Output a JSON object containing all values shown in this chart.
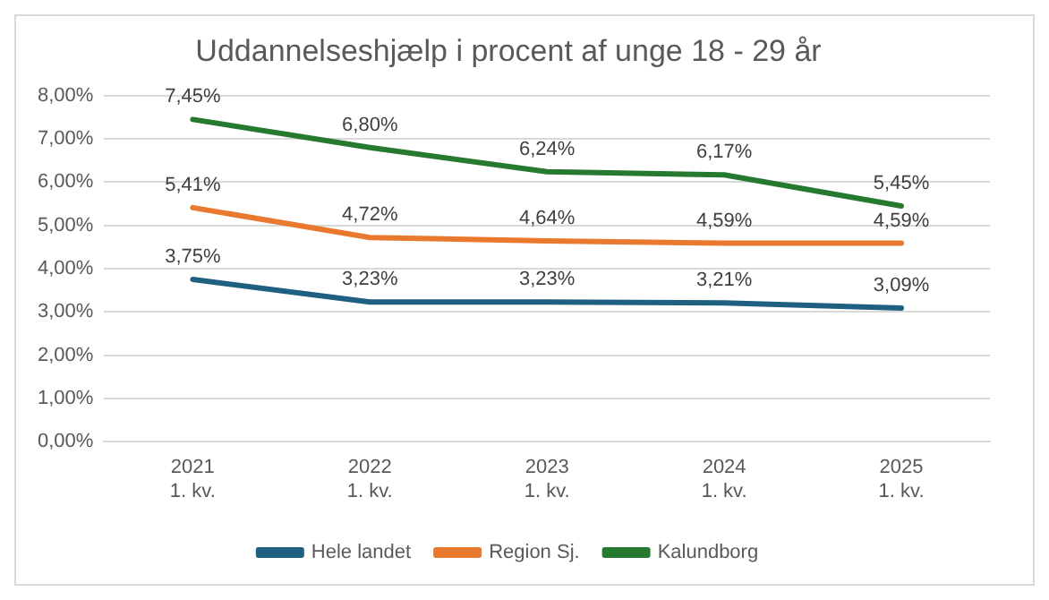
{
  "chart_data": {
    "type": "line",
    "title": "Uddannelseshjælp i procent af unge 18 - 29 år",
    "categories": [
      "2021\n1. kv.",
      "2022\n1. kv.",
      "2023\n1. kv.",
      "2024\n1. kv.",
      "2025\n1. kv."
    ],
    "series": [
      {
        "name": "Hele landet",
        "color": "#1f5f80",
        "values": [
          3.75,
          3.23,
          3.23,
          3.21,
          3.09
        ],
        "value_labels": [
          "3,75%",
          "3,23%",
          "3,23%",
          "3,21%",
          "3,09%"
        ]
      },
      {
        "name": "Region Sj.",
        "color": "#e8792f",
        "values": [
          5.41,
          4.72,
          4.64,
          4.59,
          4.59
        ],
        "value_labels": [
          "5,41%",
          "4,72%",
          "4,64%",
          "4,59%",
          "4,59%"
        ]
      },
      {
        "name": "Kalundborg",
        "color": "#267a30",
        "values": [
          7.45,
          6.8,
          6.24,
          6.17,
          5.45
        ],
        "value_labels": [
          "7,45%",
          "6,80%",
          "6,24%",
          "6,17%",
          "5,45%"
        ]
      }
    ],
    "ylim": [
      0,
      8
    ],
    "yticks": [
      {
        "value": 0,
        "label": "0,00%"
      },
      {
        "value": 1,
        "label": "1,00%"
      },
      {
        "value": 2,
        "label": "2,00%"
      },
      {
        "value": 3,
        "label": "3,00%"
      },
      {
        "value": 4,
        "label": "4,00%"
      },
      {
        "value": 5,
        "label": "5,00%"
      },
      {
        "value": 6,
        "label": "6,00%"
      },
      {
        "value": 7,
        "label": "7,00%"
      },
      {
        "value": 8,
        "label": "8,00%"
      }
    ],
    "grid": "y",
    "legend": "bottom",
    "marker": "none",
    "line_style": "solid"
  }
}
